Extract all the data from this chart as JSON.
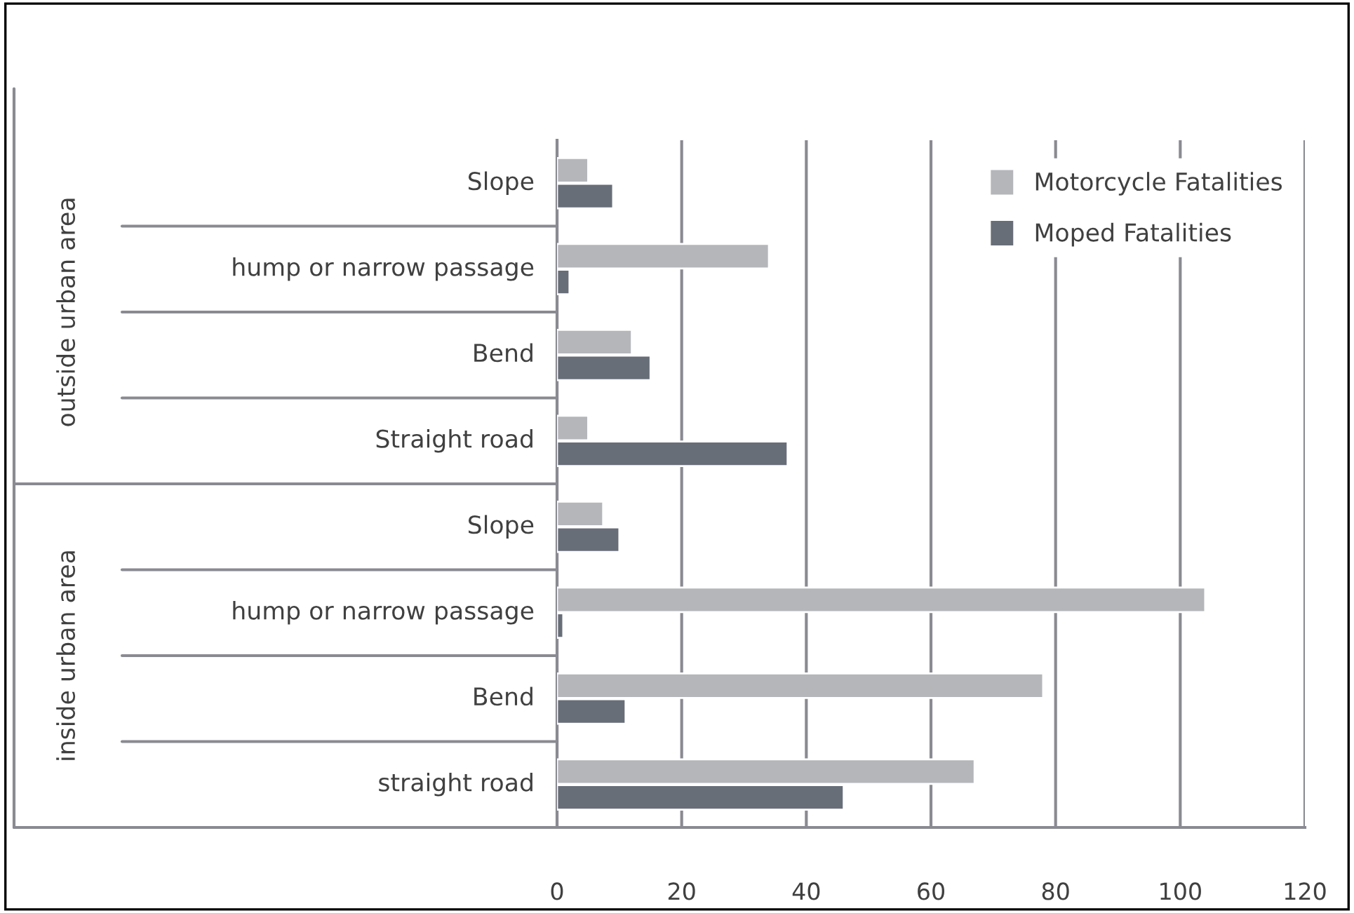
{
  "chart_data": {
    "type": "bar",
    "orientation": "horizontal",
    "categories": [
      "Slope",
      "hump or narrow passage",
      "Bend",
      "Straight road",
      "Slope",
      "hump or narrow passage",
      "Bend",
      "straight road"
    ],
    "series": [
      {
        "name": "Motorcycle Fatalities",
        "color": "#b5b6ba",
        "values": [
          5,
          34,
          12,
          5,
          7.4,
          104,
          78,
          67
        ]
      },
      {
        "name": "Moped Fatalities",
        "color": "#686e78",
        "values": [
          9,
          2,
          15,
          37,
          10,
          1,
          11,
          46
        ]
      }
    ],
    "xlim": [
      0,
      120
    ],
    "xticks": [
      0,
      20,
      40,
      60,
      80,
      100,
      120
    ],
    "grid": "x",
    "legend": "top right",
    "annotations": [
      "outside urban area",
      "inside urban area"
    ]
  }
}
